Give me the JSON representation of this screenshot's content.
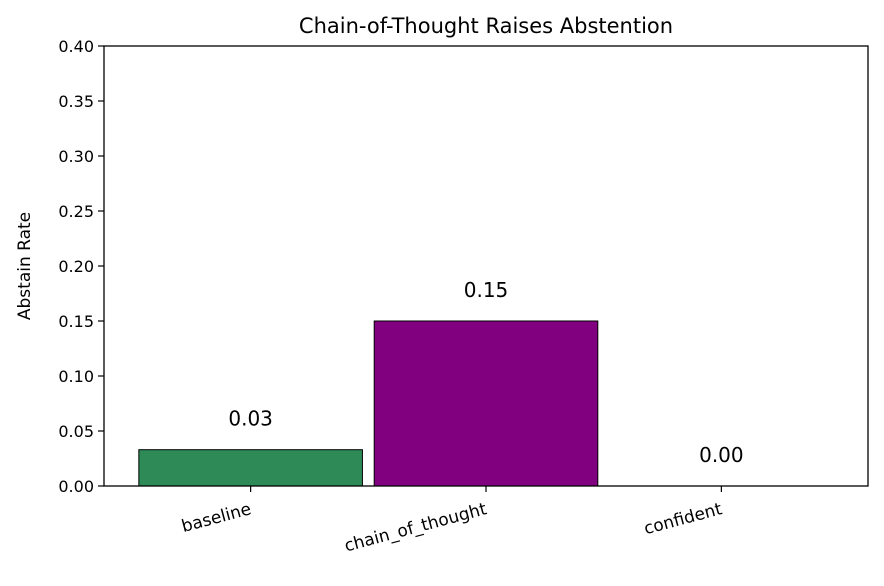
{
  "chart_data": {
    "type": "bar",
    "title": "Chain-of-Thought Raises Abstention",
    "xlabel": "",
    "ylabel": "Abstain Rate",
    "categories": [
      "baseline",
      "chain_of_thought",
      "confident"
    ],
    "values": [
      0.033,
      0.15,
      0.0
    ],
    "data_labels": [
      "0.03",
      "0.15",
      "0.00"
    ],
    "colors": [
      "#2e8b57",
      "#800080",
      "#2e8b57"
    ],
    "ylim": [
      0,
      0.4
    ],
    "yticks": [
      "0.00",
      "0.05",
      "0.10",
      "0.15",
      "0.20",
      "0.25",
      "0.30",
      "0.35",
      "0.40"
    ],
    "grid": false,
    "xtick_rotation_deg": 15
  }
}
